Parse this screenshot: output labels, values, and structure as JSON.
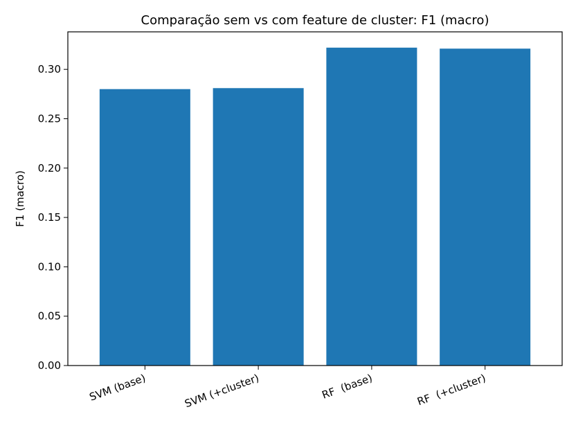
{
  "chart_data": {
    "type": "bar",
    "title": "Comparação sem vs com feature de cluster: F1 (macro)",
    "xlabel": "",
    "ylabel": "F1 (macro)",
    "categories": [
      "SVM (base)",
      "SVM (+cluster)",
      "RF  (base)",
      "RF  (+cluster)"
    ],
    "values": [
      0.28,
      0.281,
      0.322,
      0.321
    ],
    "ylim": [
      0,
      0.338
    ],
    "yticks": [
      "0.00",
      "0.05",
      "0.10",
      "0.15",
      "0.20",
      "0.25",
      "0.30"
    ],
    "bar_color": "#1f77b4",
    "grid": false,
    "legend": "none"
  }
}
